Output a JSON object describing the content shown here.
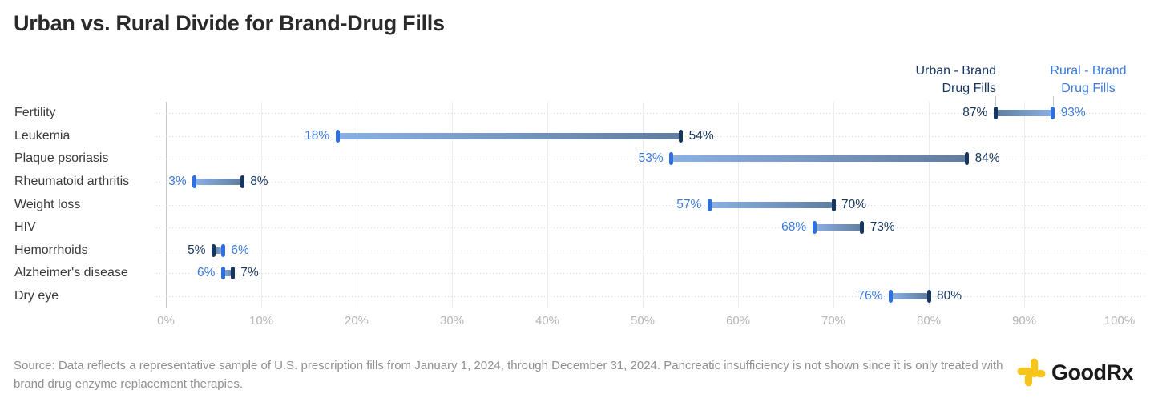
{
  "title": "Urban vs. Rural Divide for Brand-Drug Fills",
  "colors": {
    "urban": "#17365F",
    "rural": "#3B79DD",
    "rural_cap": "#2F6FE0",
    "bar_urban_side": "#607D9E",
    "bar_rural_side": "#8AB0E4",
    "brand_yellow": "#F6C51C"
  },
  "chart_data": {
    "type": "bar",
    "variant": "dumbbell-range",
    "title": "Urban vs. Rural Divide for Brand-Drug Fills",
    "categories": [
      "Fertility",
      "Leukemia",
      "Plaque psoriasis",
      "Rheumatoid arthritis",
      "Weight loss",
      "HIV",
      "Hemorrhoids",
      "Alzheimer's disease",
      "Dry eye"
    ],
    "series": [
      {
        "name": "Urban - Brand Drug Fills",
        "label_lines": [
          "Urban - Brand",
          "Drug Fills"
        ],
        "color": "#17365F",
        "values": [
          87,
          54,
          84,
          8,
          70,
          73,
          5,
          7,
          80
        ]
      },
      {
        "name": "Rural - Brand Drug Fills",
        "label_lines": [
          "Rural - Brand",
          "Drug Fills"
        ],
        "color": "#3B79DD",
        "values": [
          93,
          18,
          53,
          3,
          57,
          68,
          6,
          6,
          76
        ]
      }
    ],
    "value_suffix": "%",
    "xlim": [
      0,
      100
    ],
    "tick_step": 10,
    "x_tick_labels": [
      "0%",
      "10%",
      "20%",
      "30%",
      "40%",
      "50%",
      "60%",
      "70%",
      "80%",
      "90%",
      "100%"
    ],
    "grid": "vertical solid lines every 10%, dotted horizontal line per category row",
    "legend_position": "top-right"
  },
  "source": {
    "text": "Source: Data reflects a representative sample of U.S. prescription fills from January 1, 2024, through December 31, 2024. Pancreatic insufficiency is not shown since it is only treated with brand drug enzyme replacement therapies."
  },
  "logo": {
    "brand": "GoodRx",
    "icon": "offset-cross",
    "color": "#F6C51C"
  }
}
